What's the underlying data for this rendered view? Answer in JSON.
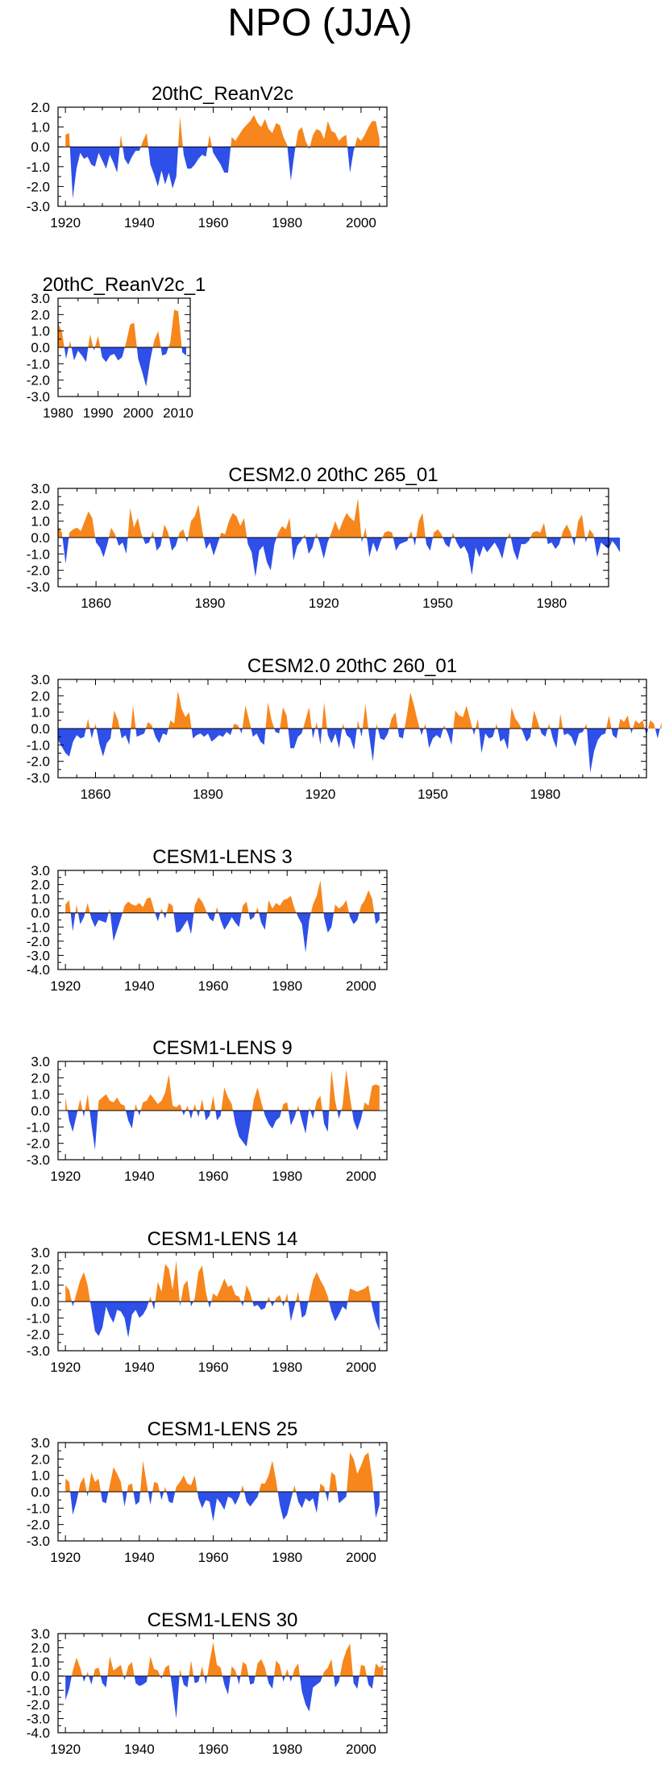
{
  "page": {
    "title": "NPO (JJA)"
  },
  "colors": {
    "positive": "#f7861c",
    "negative": "#2e4fe8",
    "axis": "#000000"
  },
  "chart_data": [
    {
      "type": "area",
      "title": "20thC_ReanV2c",
      "x_start": 1920,
      "x_end": 2005,
      "xlim": [
        1918,
        2007
      ],
      "ylim": [
        -3,
        2
      ],
      "xticks": [
        1920,
        1940,
        1960,
        1980,
        2000
      ],
      "yticks": [
        2.0,
        1.0,
        0.0,
        -1.0,
        -2.0,
        -3.0
      ],
      "values": [
        0.6,
        0.7,
        -2.6,
        -1.1,
        -0.3,
        -0.6,
        -0.5,
        -0.9,
        -1.0,
        -0.3,
        -0.7,
        -1.1,
        -0.4,
        -0.8,
        -1.3,
        0.6,
        -0.6,
        -0.9,
        -0.5,
        -0.2,
        -0.2,
        0.3,
        0.7,
        -0.9,
        -1.4,
        -2.0,
        -1.2,
        -1.9,
        -1.3,
        -2.1,
        -1.5,
        1.5,
        -0.4,
        -1.1,
        -1.1,
        -0.9,
        -0.6,
        -0.4,
        -0.5,
        0.6,
        -0.3,
        -0.6,
        -0.9,
        -1.3,
        -1.3,
        0.5,
        0.3,
        0.6,
        0.9,
        1.1,
        1.3,
        1.6,
        1.2,
        1.0,
        1.4,
        0.9,
        0.7,
        1.2,
        1.1,
        0.5,
        0.1,
        -1.7,
        -0.3,
        0.8,
        1.0,
        0.3,
        -0.1,
        0.6,
        0.9,
        0.8,
        0.4,
        1.3,
        0.8,
        0.7,
        0.3,
        0.5,
        0.6,
        -1.3,
        -0.2,
        0.5,
        0.3,
        0.6,
        1.0,
        1.3,
        1.3,
        0.4
      ]
    },
    {
      "type": "area",
      "title": "20thC_ReanV2c_1",
      "x_start": 1980,
      "x_end": 2012,
      "xlim": [
        1980,
        2013
      ],
      "ylim": [
        -3,
        3
      ],
      "xticks": [
        1980,
        1990,
        2000,
        2010
      ],
      "yticks": [
        3.0,
        2.0,
        1.0,
        0.0,
        -1.0,
        -2.0,
        -3.0
      ],
      "values": [
        1.5,
        0.9,
        -0.7,
        0.4,
        -0.8,
        -0.2,
        -0.5,
        -0.9,
        0.8,
        -0.2,
        0.7,
        -0.6,
        -0.9,
        -0.5,
        -0.4,
        -0.8,
        -0.6,
        0.3,
        1.4,
        1.5,
        -0.7,
        -1.5,
        -2.4,
        -0.8,
        0.4,
        1.0,
        -0.5,
        -0.4,
        0.3,
        2.3,
        2.2,
        -0.3,
        -0.5
      ]
    },
    {
      "type": "area",
      "title": "CESM2.0 20thC 265_01",
      "x_start": 1850,
      "x_end": 1994,
      "xlim": [
        1850,
        1995
      ],
      "ylim": [
        -3,
        3
      ],
      "xticks": [
        1860,
        1890,
        1920,
        1950,
        1980
      ],
      "yticks": [
        3.0,
        2.0,
        1.0,
        0.0,
        -1.0,
        -2.0,
        -3.0
      ],
      "values": [
        0.7,
        0.3,
        -1.6,
        0.3,
        0.5,
        0.6,
        0.4,
        1.0,
        1.6,
        1.2,
        -0.3,
        -0.6,
        -1.2,
        -0.4,
        0.6,
        0.2,
        -0.5,
        -0.3,
        -1.0,
        1.8,
        0.6,
        1.2,
        0.2,
        -0.4,
        -0.3,
        0.4,
        -0.8,
        -0.5,
        0.8,
        0.3,
        -0.8,
        -0.5,
        0.3,
        0.5,
        -0.3,
        1.0,
        1.3,
        2.0,
        0.4,
        -0.7,
        -0.3,
        -1.1,
        -0.4,
        0.3,
        0.2,
        1.0,
        1.5,
        1.3,
        0.7,
        1.2,
        -0.4,
        -0.9,
        -2.4,
        -0.8,
        -0.5,
        -1.5,
        -2.0,
        -0.4,
        0.3,
        0.7,
        0.5,
        1.2,
        -1.4,
        -0.5,
        -0.2,
        0.2,
        -1.0,
        -0.6,
        0.3,
        -0.4,
        -1.3,
        -0.3,
        0.3,
        1.0,
        0.4,
        1.0,
        1.5,
        1.2,
        1.0,
        2.4,
        -0.3,
        0.6,
        -1.2,
        -0.3,
        -0.9,
        -0.2,
        0.3,
        0.4,
        0.3,
        -0.8,
        -0.4,
        -0.3,
        -0.2,
        0.4,
        -0.5,
        1.0,
        1.5,
        -0.4,
        -0.8,
        0.3,
        0.5,
        0.2,
        -0.4,
        -0.6,
        0.3,
        -0.3,
        -0.7,
        -0.5,
        -1.0,
        -2.3,
        -0.6,
        -1.2,
        -0.5,
        -0.9,
        -0.6,
        -0.3,
        -0.7,
        -1.3,
        -0.2,
        0.3,
        -0.8,
        -1.4,
        -0.4,
        -0.4,
        -0.2,
        0.3,
        0.4,
        0.3,
        0.9,
        -0.4,
        -0.3,
        -0.7,
        -0.4,
        0.4,
        0.8,
        0.3,
        -0.5,
        1.0,
        1.4,
        -0.3,
        0.5,
        0.2,
        -1.2,
        -0.3,
        -0.5,
        -0.7,
        -0.2,
        -0.5,
        -0.9
      ]
    },
    {
      "type": "area",
      "title": "CESM2.0 20thC 260_01",
      "x_start": 1850,
      "x_end": 2005,
      "xlim": [
        1850,
        2007
      ],
      "ylim": [
        -3,
        3
      ],
      "xticks": [
        1860,
        1890,
        1920,
        1950,
        1980
      ],
      "yticks": [
        3.0,
        2.0,
        1.0,
        0.0,
        -1.0,
        -2.0,
        -3.0
      ],
      "values": [
        -0.7,
        -1.1,
        -1.5,
        -1.7,
        -0.8,
        -0.4,
        -0.6,
        -0.5,
        0.6,
        -0.6,
        0.3,
        -0.9,
        -1.7,
        -0.9,
        -0.6,
        1.1,
        0.5,
        -0.6,
        -0.4,
        -1.0,
        1.4,
        -0.5,
        -0.4,
        -0.3,
        0.4,
        0.2,
        -0.5,
        -0.9,
        -0.3,
        -0.4,
        0.5,
        0.3,
        2.3,
        1.2,
        0.7,
        1.0,
        -0.6,
        -0.4,
        -0.3,
        -0.5,
        -0.3,
        -0.8,
        -0.6,
        -0.4,
        -0.5,
        -0.2,
        -0.4,
        0.3,
        0.2,
        -0.3,
        1.4,
        0.5,
        -0.5,
        -0.3,
        -0.8,
        -1.0,
        1.6,
        0.5,
        -0.2,
        -0.3,
        1.3,
        0.8,
        -1.2,
        -1.2,
        -0.5,
        -0.3,
        0.5,
        1.3,
        -0.6,
        0.4,
        -1.0,
        1.6,
        -0.4,
        -0.9,
        -0.3,
        -1.2,
        0.3,
        -0.4,
        -0.6,
        -1.3,
        0.5,
        -0.5,
        1.5,
        -0.4,
        -2.0,
        0.3,
        -0.6,
        -0.7,
        -0.3,
        0.6,
        1.0,
        -0.5,
        -0.6,
        0.7,
        2.2,
        1.4,
        0.4,
        -0.4,
        0.3,
        -1.2,
        -0.6,
        -0.4,
        -0.6,
        0.2,
        -0.3,
        -1.0,
        1.1,
        0.8,
        0.7,
        1.4,
        0.5,
        -0.4,
        0.6,
        -1.5,
        -0.3,
        -0.6,
        -0.5,
        0.3,
        -0.8,
        -0.6,
        -1.3,
        1.3,
        0.6,
        0.3,
        -0.2,
        -0.8,
        -0.5,
        1.1,
        0.4,
        -0.3,
        -0.5,
        0.3,
        -0.6,
        -1.2,
        0.9,
        -0.4,
        -0.3,
        -0.5,
        -1.1,
        -0.3,
        -0.2,
        0.3,
        -2.7,
        -1.4,
        -0.7,
        -0.4,
        -0.3,
        0.8,
        -0.4,
        -0.6,
        0.6,
        0.4,
        0.8,
        -0.3,
        0.5,
        0.3,
        0.5,
        -0.4,
        0.5,
        0.3,
        -0.6,
        0.4
      ]
    },
    {
      "type": "area",
      "title": "CESM1-LENS 3",
      "x_start": 1920,
      "x_end": 2005,
      "xlim": [
        1918,
        2007
      ],
      "ylim": [
        -4,
        3
      ],
      "xticks": [
        1920,
        1940,
        1960,
        1980,
        2000
      ],
      "yticks": [
        3.0,
        2.0,
        1.0,
        0.0,
        -1.0,
        -2.0,
        -3.0,
        -4.0
      ],
      "values": [
        0.6,
        0.9,
        -1.3,
        0.6,
        -0.8,
        -0.3,
        0.7,
        -0.4,
        -1.0,
        -0.5,
        -0.6,
        -0.7,
        0.3,
        -2.0,
        -1.2,
        -0.4,
        0.5,
        0.8,
        0.6,
        0.5,
        0.7,
        0.4,
        1.0,
        1.1,
        0.2,
        -0.6,
        0.3,
        -0.4,
        0.7,
        0.5,
        -1.4,
        -1.3,
        -0.9,
        -0.5,
        -1.5,
        0.5,
        1.1,
        0.8,
        0.2,
        -0.4,
        -0.6,
        0.4,
        -0.5,
        -1.2,
        -0.8,
        -0.3,
        -0.7,
        -1.0,
        0.5,
        0.8,
        -0.5,
        -0.3,
        0.4,
        -0.7,
        -1.2,
        0.9,
        0.3,
        0.7,
        0.5,
        0.9,
        1.0,
        1.2,
        0.3,
        -0.3,
        -0.8,
        -2.8,
        -0.5,
        0.6,
        1.2,
        2.3,
        -0.3,
        -1.4,
        -1.0,
        0.6,
        0.3,
        0.5,
        0.9,
        -0.3,
        -0.8,
        -0.5,
        0.5,
        0.9,
        1.6,
        1.0,
        -0.8,
        -0.5
      ]
    },
    {
      "type": "area",
      "title": "CESM1-LENS 9",
      "x_start": 1920,
      "x_end": 2005,
      "xlim": [
        1918,
        2007
      ],
      "ylim": [
        -3,
        3
      ],
      "xticks": [
        1920,
        1940,
        1960,
        1980,
        2000
      ],
      "yticks": [
        3.0,
        2.0,
        1.0,
        0.0,
        -1.0,
        -2.0,
        -3.0
      ],
      "values": [
        0.8,
        -0.6,
        -1.3,
        -0.3,
        0.7,
        -0.4,
        1.0,
        -0.8,
        -2.4,
        0.6,
        0.8,
        1.0,
        0.6,
        0.5,
        0.8,
        0.4,
        0.3,
        -0.6,
        -1.1,
        0.4,
        -0.3,
        0.5,
        0.6,
        1.0,
        0.7,
        0.4,
        0.6,
        1.1,
        2.2,
        0.3,
        0.2,
        0.4,
        -0.3,
        0.3,
        -0.5,
        0.4,
        -0.4,
        0.7,
        -0.6,
        -0.3,
        0.9,
        -0.6,
        -0.3,
        1.4,
        0.8,
        0.4,
        -0.8,
        -1.6,
        -1.9,
        -2.2,
        -0.8,
        0.7,
        1.4,
        0.5,
        -0.3,
        -0.8,
        -1.1,
        -0.6,
        -0.4,
        0.4,
        0.5,
        -0.9,
        -0.4,
        0.3,
        -0.6,
        -1.4,
        0.2,
        -0.5,
        0.6,
        0.9,
        -0.8,
        -1.3,
        2.5,
        0.6,
        -0.5,
        0.3,
        2.5,
        0.8,
        -0.6,
        -1.2,
        -0.5,
        0.5,
        0.3,
        1.5,
        1.6,
        1.5
      ]
    },
    {
      "type": "area",
      "title": "CESM1-LENS 14",
      "x_start": 1920,
      "x_end": 2005,
      "xlim": [
        1918,
        2007
      ],
      "ylim": [
        -3,
        3
      ],
      "xticks": [
        1920,
        1940,
        1960,
        1980,
        2000
      ],
      "yticks": [
        3.0,
        2.0,
        1.0,
        0.0,
        -1.0,
        -2.0,
        -3.0
      ],
      "values": [
        1.0,
        0.7,
        -0.3,
        0.5,
        1.3,
        1.8,
        1.0,
        -0.4,
        -1.8,
        -2.1,
        -1.6,
        -0.3,
        -0.9,
        -1.3,
        -0.5,
        -0.6,
        -1.0,
        -2.2,
        -0.8,
        -0.5,
        -1.0,
        -0.8,
        -0.4,
        0.3,
        -0.5,
        1.2,
        0.6,
        2.3,
        2.0,
        0.7,
        2.5,
        -0.3,
        1.0,
        1.3,
        -0.3,
        0.2,
        1.8,
        2.2,
        0.6,
        -0.4,
        0.5,
        0.3,
        0.8,
        1.4,
        0.9,
        1.0,
        0.4,
        0.3,
        -0.3,
        1.0,
        0.5,
        -0.3,
        -0.2,
        -0.5,
        -0.4,
        0.3,
        -0.3,
        0.2,
        0.4,
        -0.3,
        0.5,
        -1.2,
        -0.3,
        0.6,
        -1.0,
        -0.8,
        0.3,
        1.3,
        1.8,
        1.3,
        0.9,
        0.3,
        -0.6,
        -1.2,
        -0.8,
        -0.3,
        -0.5,
        0.8,
        0.7,
        0.6,
        0.7,
        0.8,
        1.0,
        -0.3,
        -1.2,
        -1.8
      ]
    },
    {
      "type": "area",
      "title": "CESM1-LENS 25",
      "x_start": 1920,
      "x_end": 2005,
      "xlim": [
        1918,
        2007
      ],
      "ylim": [
        -3,
        3
      ],
      "xticks": [
        1920,
        1940,
        1960,
        1980,
        2000
      ],
      "yticks": [
        3.0,
        2.0,
        1.0,
        0.0,
        -1.0,
        -2.0,
        -3.0
      ],
      "values": [
        0.8,
        0.6,
        -1.4,
        -0.6,
        0.5,
        0.9,
        -0.3,
        1.2,
        0.6,
        0.8,
        -0.6,
        -0.7,
        0.4,
        1.5,
        1.1,
        0.6,
        -0.9,
        0.4,
        0.5,
        -0.8,
        -0.6,
        1.9,
        0.5,
        -0.8,
        0.6,
        0.5,
        -0.5,
        0.3,
        -0.6,
        -0.7,
        0.3,
        0.6,
        1.0,
        0.5,
        0.4,
        1.0,
        -0.4,
        -1.0,
        -0.5,
        -0.6,
        -1.8,
        -0.4,
        -0.7,
        -1.1,
        -0.3,
        -0.4,
        -0.8,
        -0.3,
        0.4,
        -0.6,
        -0.9,
        -0.6,
        -0.3,
        0.5,
        0.5,
        1.0,
        1.9,
        0.7,
        -0.8,
        -1.7,
        -1.4,
        -0.5,
        0.4,
        -0.6,
        -1.0,
        -0.4,
        -0.6,
        -0.4,
        -1.3,
        0.5,
        0.3,
        -0.6,
        1.2,
        1.0,
        -0.7,
        -0.5,
        -0.3,
        2.4,
        2.0,
        1.1,
        1.6,
        2.2,
        2.4,
        0.8,
        -1.6,
        -0.8
      ]
    },
    {
      "type": "area",
      "title": "CESM1-LENS 30",
      "x_start": 1920,
      "x_end": 2005,
      "xlim": [
        1918,
        2007
      ],
      "ylim": [
        -4,
        3
      ],
      "xticks": [
        1920,
        1940,
        1960,
        1980,
        2000
      ],
      "yticks": [
        3.0,
        2.0,
        1.0,
        0.0,
        -1.0,
        -2.0,
        -3.0,
        -4.0
      ],
      "values": [
        -1.7,
        -0.9,
        0.4,
        1.3,
        0.6,
        -0.4,
        0.3,
        -0.6,
        0.5,
        0.6,
        -0.5,
        -0.8,
        1.4,
        0.4,
        0.6,
        0.8,
        -0.3,
        0.7,
        1.0,
        -0.5,
        -0.7,
        -0.6,
        -0.4,
        1.4,
        0.5,
        0.4,
        -0.2,
        0.6,
        0.8,
        -1.0,
        -3.0,
        0.5,
        -0.6,
        -0.8,
        1.1,
        -0.5,
        -0.4,
        0.7,
        -0.6,
        1.0,
        2.4,
        0.8,
        0.6,
        -0.6,
        -1.3,
        0.7,
        0.4,
        -0.6,
        1.0,
        0.8,
        -0.6,
        -0.5,
        0.9,
        1.2,
        0.6,
        -0.5,
        -0.9,
        1.1,
        0.8,
        -0.4,
        0.5,
        -0.4,
        0.5,
        0.9,
        -1.1,
        -2.0,
        -2.5,
        -0.8,
        -0.6,
        -0.4,
        0.3,
        0.6,
        1.2,
        -0.8,
        -0.4,
        1.0,
        1.8,
        2.3,
        -0.5,
        -0.9,
        0.8,
        0.7,
        -0.6,
        -0.9,
        0.9,
        0.6,
        0.8
      ]
    }
  ]
}
